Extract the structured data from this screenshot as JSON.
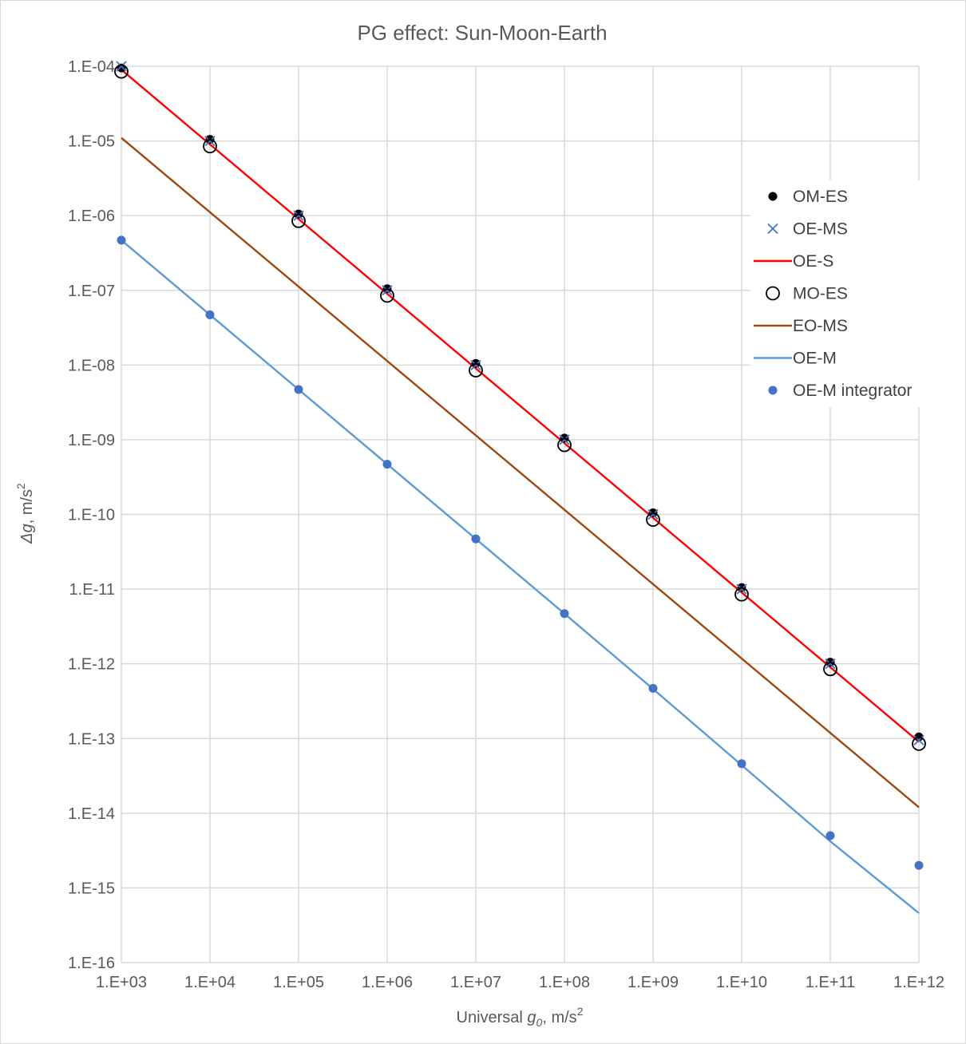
{
  "chart_data": {
    "type": "scatter",
    "title": "PG effect: Sun-Moon-Earth",
    "xlabel": {
      "pre": "Universal ",
      "var": "g",
      "sub": "0",
      "post": ", m/s",
      "sup": "2"
    },
    "ylabel": {
      "pre": "Δ",
      "var": "g",
      "post": ", m/s",
      "sup": "2"
    },
    "x_scale": "log",
    "y_scale": "log",
    "xlim": [
      1000,
      1000000000000
    ],
    "ylim": [
      1e-16,
      0.0001
    ],
    "x_ticks": [
      1000,
      10000,
      100000,
      1000000,
      10000000,
      100000000,
      1000000000,
      10000000000,
      100000000000,
      1000000000000
    ],
    "x_tick_labels": [
      "1.E+03",
      "1.E+04",
      "1.E+05",
      "1.E+06",
      "1.E+07",
      "1.E+08",
      "1.E+09",
      "1.E+10",
      "1.E+11",
      "1.E+12"
    ],
    "y_ticks": [
      0.0001,
      1e-05,
      1e-06,
      1e-07,
      1e-08,
      1e-09,
      1e-10,
      1e-11,
      1e-12,
      1e-13,
      1e-14,
      1e-15,
      1e-16
    ],
    "y_tick_labels": [
      "1.E-04",
      "1.E-05",
      "1.E-06",
      "1.E-07",
      "1.E-08",
      "1.E-09",
      "1.E-10",
      "1.E-11",
      "1.E-12",
      "1.E-13",
      "1.E-14",
      "1.E-15",
      "1.E-16"
    ],
    "grid": true,
    "legend_position": "right",
    "series": [
      {
        "name": "OM-ES",
        "style": "marker",
        "marker": "filled-circle",
        "color": "#000000",
        "x": [
          1000,
          10000,
          100000,
          1000000,
          10000000,
          100000000,
          1000000000,
          10000000000,
          100000000000,
          1000000000000
        ],
        "y": [
          9.5e-05,
          1.05e-05,
          1.05e-06,
          1.05e-07,
          1.05e-08,
          1.05e-09,
          1.05e-10,
          1.05e-11,
          1.05e-12,
          1.05e-13
        ]
      },
      {
        "name": "OE-MS",
        "style": "marker",
        "marker": "x",
        "color": "#4472c4",
        "x": [
          1000,
          10000,
          100000,
          1000000,
          10000000,
          100000000,
          1000000000,
          10000000000,
          100000000000,
          1000000000000
        ],
        "y": [
          0.0001,
          1e-05,
          1e-06,
          1e-07,
          1e-08,
          1e-09,
          1e-10,
          1e-11,
          1e-12,
          9.5e-14
        ]
      },
      {
        "name": "OE-S",
        "style": "line",
        "color": "#ff0000",
        "x": [
          1000,
          1000000000000
        ],
        "y": [
          9e-05,
          9e-14
        ]
      },
      {
        "name": "MO-ES",
        "style": "marker",
        "marker": "open-circle",
        "color": "#000000",
        "x": [
          1000,
          10000,
          100000,
          1000000,
          10000000,
          100000000,
          1000000000,
          10000000000,
          100000000000,
          1000000000000
        ],
        "y": [
          8.5e-05,
          8.5e-06,
          8.5e-07,
          8.5e-08,
          8.5e-09,
          8.5e-10,
          8.5e-11,
          8.5e-12,
          8.5e-13,
          8.5e-14
        ]
      },
      {
        "name": "EO-MS",
        "style": "line",
        "color": "#9e480e",
        "x": [
          1000,
          1000000000000
        ],
        "y": [
          1.1e-05,
          1.2e-14
        ]
      },
      {
        "name": "OE-M",
        "style": "line",
        "color": "#5b9bd5",
        "x": [
          1000,
          10000,
          100000,
          1000000,
          10000000,
          100000000,
          1000000000,
          10000000000,
          100000000000,
          1000000000000
        ],
        "y": [
          4.7e-07,
          4.7e-08,
          4.7e-09,
          4.7e-10,
          4.7e-11,
          4.7e-12,
          4.6e-13,
          4.4e-14,
          4.2e-15,
          4.6e-16
        ]
      },
      {
        "name": "OE-M integrator",
        "style": "marker",
        "marker": "filled-circle",
        "color": "#4472c4",
        "x": [
          1000,
          10000,
          100000,
          1000000,
          10000000,
          100000000,
          1000000000,
          10000000000,
          100000000000,
          1000000000000
        ],
        "y": [
          4.7e-07,
          4.7e-08,
          4.7e-09,
          4.7e-10,
          4.7e-11,
          4.7e-12,
          4.7e-13,
          4.6e-14,
          5e-15,
          2e-15
        ]
      }
    ]
  }
}
